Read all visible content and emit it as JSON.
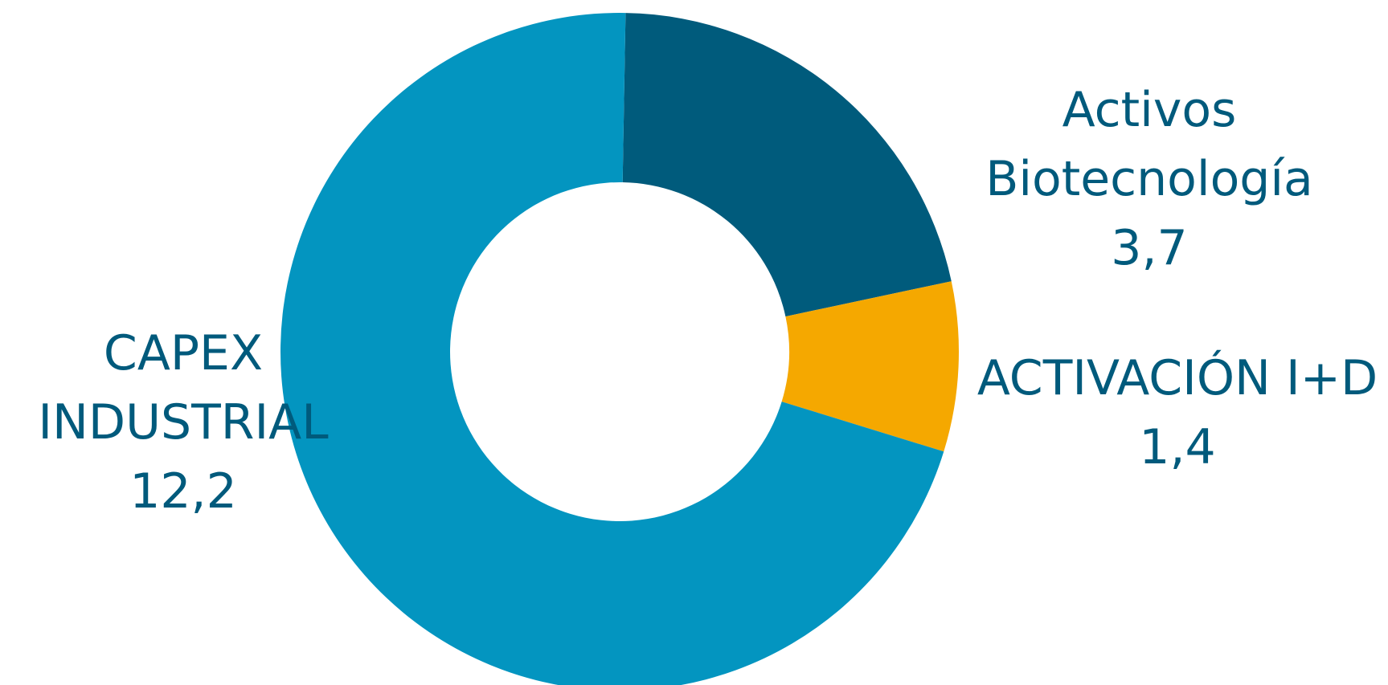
{
  "chart_data": {
    "type": "pie",
    "variant": "donut",
    "start_angle_deg": -89,
    "direction": "clockwise",
    "slices": [
      {
        "label_lines": [
          "Activos",
          "Biotecnología"
        ],
        "value_text": "3,7",
        "value": 3.7,
        "color": "#005b7c"
      },
      {
        "label_lines": [
          "ACTIVACIÓN I+D"
        ],
        "value_text": "1,4",
        "value": 1.4,
        "color": "#f5a800"
      },
      {
        "label_lines": [
          "CAPEX",
          "INDUSTRIAL"
        ],
        "value_text": "12,2",
        "value": 12.2,
        "color": "#0395c0"
      }
    ],
    "background": "#ffffff",
    "label_color": "#005a7c"
  }
}
